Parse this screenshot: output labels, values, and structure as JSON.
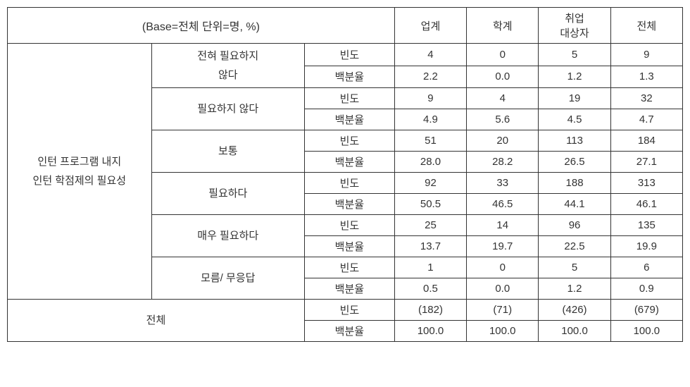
{
  "table": {
    "caption": "(Base=전체 단위=명, %)",
    "row_major_label": "인턴 프로그램 내지\n인턴 학점제의 필요성",
    "total_row_label": "전체",
    "col_c1_w": 160,
    "col_c2_w": 170,
    "col_c3_w": 100,
    "categories": [
      {
        "key": "c4",
        "label": "업계",
        "w": 80
      },
      {
        "key": "c5",
        "label": "학계",
        "w": 80
      },
      {
        "key": "c6",
        "label": "취업\n대상자",
        "w": 80
      },
      {
        "key": "c7",
        "label": "전체",
        "w": 80
      }
    ],
    "metric_labels": {
      "freq": "빈도",
      "pct": "백분율"
    },
    "groups": [
      {
        "label": "전혀 필요하지\n않다",
        "freq": {
          "c4": "4",
          "c5": "0",
          "c6": "5",
          "c7": "9"
        },
        "pct": {
          "c4": "2.2",
          "c5": "0.0",
          "c6": "1.2",
          "c7": "1.3"
        }
      },
      {
        "label": "필요하지 않다",
        "freq": {
          "c4": "9",
          "c5": "4",
          "c6": "19",
          "c7": "32"
        },
        "pct": {
          "c4": "4.9",
          "c5": "5.6",
          "c6": "4.5",
          "c7": "4.7"
        }
      },
      {
        "label": "보통",
        "freq": {
          "c4": "51",
          "c5": "20",
          "c6": "113",
          "c7": "184"
        },
        "pct": {
          "c4": "28.0",
          "c5": "28.2",
          "c6": "26.5",
          "c7": "27.1"
        }
      },
      {
        "label": "필요하다",
        "freq": {
          "c4": "92",
          "c5": "33",
          "c6": "188",
          "c7": "313"
        },
        "pct": {
          "c4": "50.5",
          "c5": "46.5",
          "c6": "44.1",
          "c7": "46.1"
        }
      },
      {
        "label": "매우 필요하다",
        "freq": {
          "c4": "25",
          "c5": "14",
          "c6": "96",
          "c7": "135"
        },
        "pct": {
          "c4": "13.7",
          "c5": "19.7",
          "c6": "22.5",
          "c7": "19.9"
        }
      },
      {
        "label": "모름/ 무응답",
        "freq": {
          "c4": "1",
          "c5": "0",
          "c6": "5",
          "c7": "6"
        },
        "pct": {
          "c4": "0.5",
          "c5": "0.0",
          "c6": "1.2",
          "c7": "0.9"
        }
      }
    ],
    "total": {
      "freq": {
        "c4": "(182)",
        "c5": "(71)",
        "c6": "(426)",
        "c7": "(679)"
      },
      "pct": {
        "c4": "100.0",
        "c5": "100.0",
        "c6": "100.0",
        "c7": "100.0"
      }
    },
    "border_color": "#333333",
    "text_color": "#333333",
    "background_color": "#ffffff",
    "font_size": 15
  }
}
